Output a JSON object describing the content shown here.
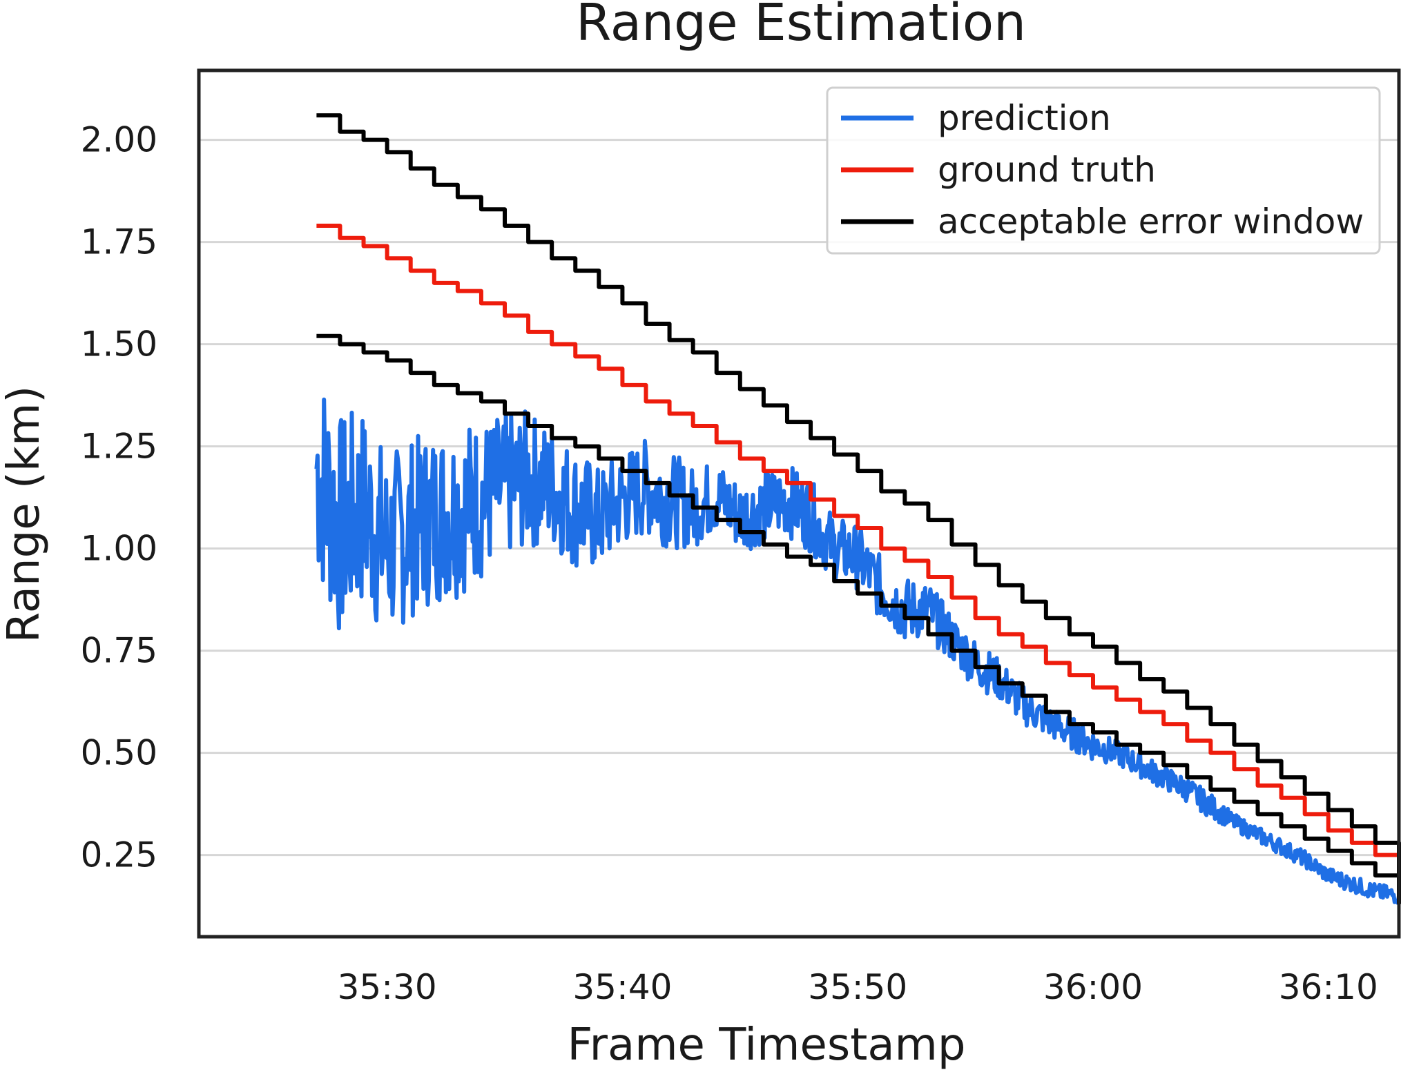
{
  "chart_data": {
    "type": "line",
    "title": "Range Estimation",
    "xlabel": "Frame Timestamp",
    "ylabel": "Range (km)",
    "x_unit": "mm:ss",
    "xlim": [
      "35:22",
      "36:13"
    ],
    "ylim": [
      0.05,
      2.17
    ],
    "x_ticks": [
      "35:30",
      "35:40",
      "35:50",
      "36:00",
      "36:10"
    ],
    "y_ticks": [
      "0.25",
      "0.50",
      "0.75",
      "1.00",
      "1.25",
      "1.50",
      "1.75",
      "2.00"
    ],
    "grid": "horizontal",
    "legend_position": "top-right",
    "colors": {
      "prediction": "#1f6fe5",
      "ground truth": "#ee1c0c",
      "acceptable error window": "#000000"
    },
    "series": [
      {
        "name": "prediction",
        "x": [
          "35:27",
          "35:28",
          "35:29",
          "35:30",
          "35:31",
          "35:32",
          "35:33",
          "35:34",
          "35:35",
          "35:36",
          "35:37",
          "35:38",
          "35:39",
          "35:40",
          "35:41",
          "35:42",
          "35:43",
          "35:44",
          "35:45",
          "35:46",
          "35:47",
          "35:48",
          "35:49",
          "35:50",
          "35:51",
          "35:52",
          "35:53",
          "35:54",
          "35:55",
          "35:56",
          "35:57",
          "35:58",
          "35:59",
          "36:00",
          "36:01",
          "36:02",
          "36:03",
          "36:04",
          "36:05",
          "36:06",
          "36:07",
          "36:08",
          "36:09",
          "36:10",
          "36:11",
          "36:12",
          "36:13"
        ],
        "values": [
          1.2,
          1.05,
          1.1,
          1.0,
          1.05,
          1.08,
          1.1,
          1.12,
          1.15,
          1.17,
          1.15,
          1.1,
          1.07,
          1.12,
          1.15,
          1.12,
          1.1,
          1.13,
          1.08,
          1.1,
          1.12,
          1.08,
          1.0,
          0.98,
          0.9,
          0.85,
          0.85,
          0.78,
          0.72,
          0.68,
          0.62,
          0.58,
          0.55,
          0.52,
          0.5,
          0.47,
          0.44,
          0.41,
          0.37,
          0.33,
          0.3,
          0.27,
          0.24,
          0.2,
          0.18,
          0.16,
          0.15
        ],
        "amplitude": [
          0.28,
          0.28,
          0.25,
          0.24,
          0.22,
          0.22,
          0.22,
          0.2,
          0.18,
          0.17,
          0.15,
          0.15,
          0.13,
          0.12,
          0.12,
          0.12,
          0.1,
          0.09,
          0.09,
          0.09,
          0.09,
          0.09,
          0.08,
          0.08,
          0.08,
          0.08,
          0.07,
          0.06,
          0.06,
          0.05,
          0.05,
          0.04,
          0.04,
          0.04,
          0.03,
          0.03,
          0.03,
          0.03,
          0.03,
          0.02,
          0.02,
          0.02,
          0.02,
          0.02,
          0.02,
          0.02,
          0.02
        ]
      },
      {
        "name": "ground truth",
        "x": [
          "35:27",
          "35:28",
          "35:29",
          "35:30",
          "35:31",
          "35:32",
          "35:33",
          "35:34",
          "35:35",
          "35:36",
          "35:37",
          "35:38",
          "35:39",
          "35:40",
          "35:41",
          "35:42",
          "35:43",
          "35:44",
          "35:45",
          "35:46",
          "35:47",
          "35:48",
          "35:49",
          "35:50",
          "35:51",
          "35:52",
          "35:53",
          "35:54",
          "35:55",
          "35:56",
          "35:57",
          "35:58",
          "35:59",
          "36:00",
          "36:01",
          "36:02",
          "36:03",
          "36:04",
          "36:05",
          "36:06",
          "36:07",
          "36:08",
          "36:09",
          "36:10",
          "36:11",
          "36:12",
          "36:13"
        ],
        "values": [
          1.79,
          1.76,
          1.74,
          1.71,
          1.68,
          1.65,
          1.63,
          1.6,
          1.57,
          1.53,
          1.5,
          1.47,
          1.44,
          1.4,
          1.36,
          1.33,
          1.3,
          1.26,
          1.22,
          1.19,
          1.16,
          1.12,
          1.08,
          1.05,
          1.0,
          0.97,
          0.93,
          0.88,
          0.83,
          0.79,
          0.76,
          0.72,
          0.69,
          0.66,
          0.63,
          0.6,
          0.57,
          0.53,
          0.5,
          0.46,
          0.42,
          0.39,
          0.35,
          0.31,
          0.28,
          0.25,
          0.15
        ]
      },
      {
        "name": "acceptable error window",
        "x": [
          "35:27",
          "35:28",
          "35:29",
          "35:30",
          "35:31",
          "35:32",
          "35:33",
          "35:34",
          "35:35",
          "35:36",
          "35:37",
          "35:38",
          "35:39",
          "35:40",
          "35:41",
          "35:42",
          "35:43",
          "35:44",
          "35:45",
          "35:46",
          "35:47",
          "35:48",
          "35:49",
          "35:50",
          "35:51",
          "35:52",
          "35:53",
          "35:54",
          "35:55",
          "35:56",
          "35:57",
          "35:58",
          "35:59",
          "36:00",
          "36:01",
          "36:02",
          "36:03",
          "36:04",
          "36:05",
          "36:06",
          "36:07",
          "36:08",
          "36:09",
          "36:10",
          "36:11",
          "36:12",
          "36:13"
        ],
        "values": [
          2.06,
          2.02,
          2.0,
          1.97,
          1.93,
          1.89,
          1.86,
          1.83,
          1.79,
          1.75,
          1.71,
          1.68,
          1.64,
          1.6,
          1.55,
          1.51,
          1.48,
          1.43,
          1.39,
          1.35,
          1.31,
          1.27,
          1.23,
          1.19,
          1.14,
          1.11,
          1.07,
          1.01,
          0.96,
          0.91,
          0.87,
          0.83,
          0.79,
          0.76,
          0.72,
          0.68,
          0.65,
          0.61,
          0.57,
          0.52,
          0.48,
          0.44,
          0.4,
          0.36,
          0.32,
          0.28,
          0.18
        ]
      },
      {
        "name": "acceptable error window",
        "x": [
          "35:27",
          "35:28",
          "35:29",
          "35:30",
          "35:31",
          "35:32",
          "35:33",
          "35:34",
          "35:35",
          "35:36",
          "35:37",
          "35:38",
          "35:39",
          "35:40",
          "35:41",
          "35:42",
          "35:43",
          "35:44",
          "35:45",
          "35:46",
          "35:47",
          "35:48",
          "35:49",
          "35:50",
          "35:51",
          "35:52",
          "35:53",
          "35:54",
          "35:55",
          "35:56",
          "35:57",
          "35:58",
          "35:59",
          "36:00",
          "36:01",
          "36:02",
          "36:03",
          "36:04",
          "36:05",
          "36:06",
          "36:07",
          "36:08",
          "36:09",
          "36:10",
          "36:11",
          "36:12",
          "36:13"
        ],
        "values": [
          1.52,
          1.5,
          1.48,
          1.46,
          1.43,
          1.4,
          1.38,
          1.36,
          1.33,
          1.3,
          1.27,
          1.25,
          1.22,
          1.19,
          1.16,
          1.13,
          1.1,
          1.07,
          1.04,
          1.01,
          0.98,
          0.96,
          0.92,
          0.89,
          0.86,
          0.83,
          0.79,
          0.75,
          0.71,
          0.67,
          0.64,
          0.6,
          0.57,
          0.55,
          0.52,
          0.5,
          0.47,
          0.44,
          0.41,
          0.38,
          0.35,
          0.32,
          0.29,
          0.26,
          0.23,
          0.2,
          0.13
        ]
      }
    ]
  }
}
